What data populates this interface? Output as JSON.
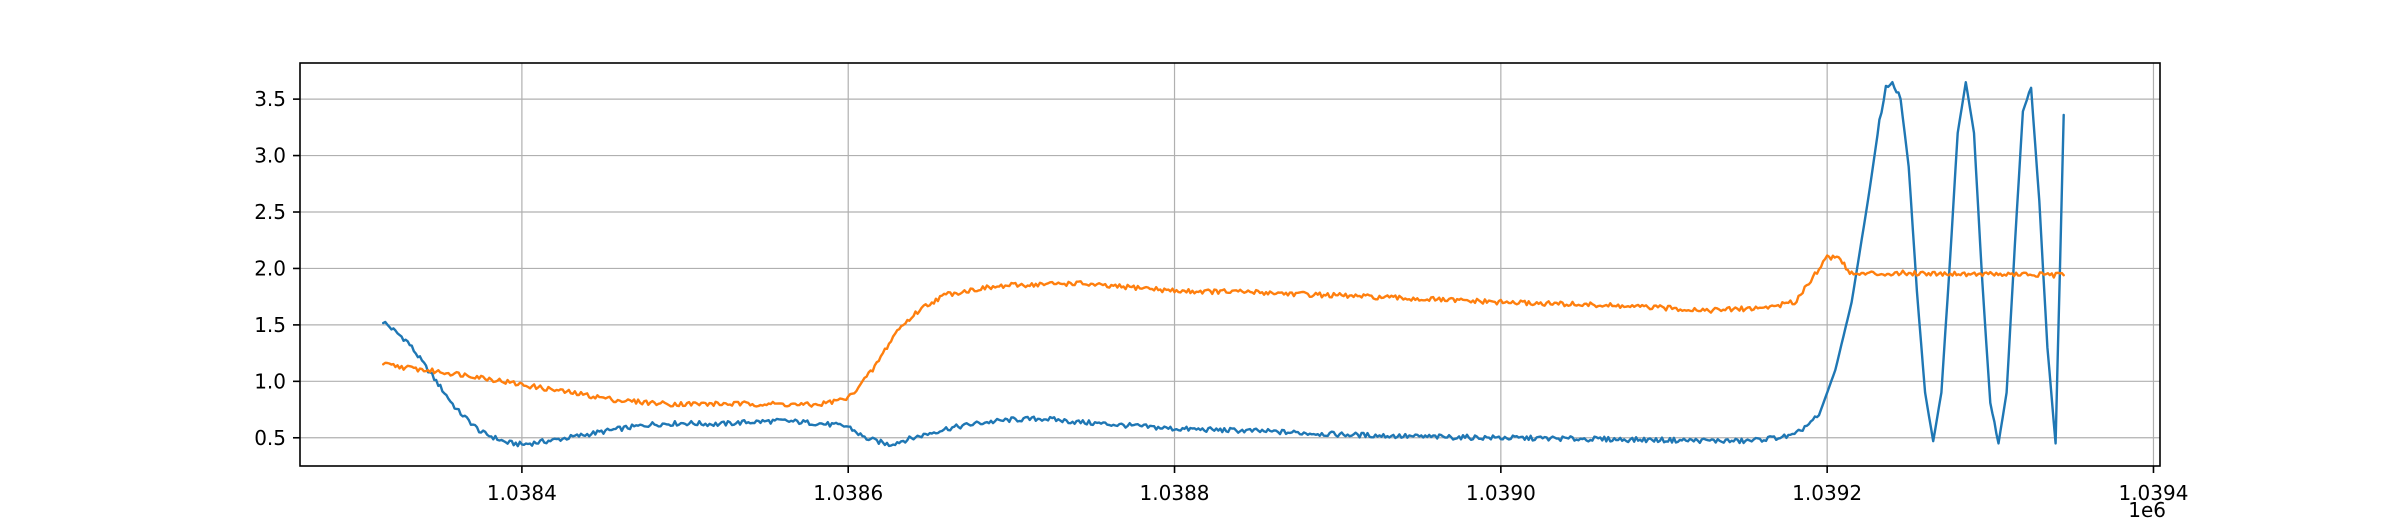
{
  "chart_data": {
    "type": "line",
    "title": "",
    "xlabel": "",
    "ylabel": "",
    "x_offset_label": "1e6",
    "xlim": [
      1038264,
      1039404
    ],
    "ylim": [
      0.25,
      3.82
    ],
    "grid": true,
    "x_ticks": [
      {
        "value": 1038400,
        "label": "1.0384"
      },
      {
        "value": 1038600,
        "label": "1.0386"
      },
      {
        "value": 1038800,
        "label": "1.0388"
      },
      {
        "value": 1039000,
        "label": "1.0390"
      },
      {
        "value": 1039200,
        "label": "1.0392"
      },
      {
        "value": 1039400,
        "label": "1.0394"
      }
    ],
    "y_ticks": [
      {
        "value": 0.5,
        "label": "0.5"
      },
      {
        "value": 1.0,
        "label": "1.0"
      },
      {
        "value": 1.5,
        "label": "1.5"
      },
      {
        "value": 2.0,
        "label": "2.0"
      },
      {
        "value": 2.5,
        "label": "2.5"
      },
      {
        "value": 3.0,
        "label": "3.0"
      },
      {
        "value": 3.5,
        "label": "3.5"
      }
    ],
    "series": [
      {
        "color": "#1f77b4",
        "x": [
          1038315,
          1038330,
          1038345,
          1038360,
          1038375,
          1038390,
          1038400,
          1038420,
          1038440,
          1038460,
          1038480,
          1038500,
          1038520,
          1038540,
          1038560,
          1038580,
          1038600,
          1038610,
          1038625,
          1038640,
          1038660,
          1038680,
          1038700,
          1038720,
          1038740,
          1038760,
          1038780,
          1038800,
          1038850,
          1038900,
          1038950,
          1039000,
          1039050,
          1039100,
          1039150,
          1039180,
          1039195,
          1039205,
          1039215,
          1039225,
          1039232,
          1039236,
          1039240,
          1039245,
          1039250,
          1039255,
          1039260,
          1039265,
          1039270,
          1039275,
          1039280,
          1039285,
          1039290,
          1039295,
          1039300,
          1039305,
          1039310,
          1039315,
          1039320,
          1039325,
          1039330,
          1039335,
          1039340,
          1039345
        ],
        "y": [
          1.53,
          1.35,
          1.05,
          0.75,
          0.55,
          0.46,
          0.44,
          0.48,
          0.53,
          0.58,
          0.62,
          0.63,
          0.62,
          0.64,
          0.65,
          0.63,
          0.6,
          0.5,
          0.44,
          0.5,
          0.58,
          0.63,
          0.66,
          0.67,
          0.64,
          0.62,
          0.6,
          0.58,
          0.56,
          0.53,
          0.51,
          0.5,
          0.49,
          0.48,
          0.47,
          0.52,
          0.7,
          1.1,
          1.7,
          2.6,
          3.3,
          3.6,
          3.65,
          3.5,
          2.9,
          1.8,
          0.9,
          0.47,
          0.9,
          2.0,
          3.2,
          3.65,
          3.2,
          1.9,
          0.8,
          0.45,
          0.9,
          2.2,
          3.4,
          3.6,
          2.6,
          1.3,
          0.45,
          3.36
        ]
      },
      {
        "color": "#ff7f0e",
        "x": [
          1038315,
          1038340,
          1038370,
          1038400,
          1038430,
          1038460,
          1038490,
          1038520,
          1038550,
          1038580,
          1038600,
          1038615,
          1038630,
          1038645,
          1038660,
          1038680,
          1038700,
          1038720,
          1038740,
          1038760,
          1038780,
          1038800,
          1038850,
          1038900,
          1038950,
          1039000,
          1039050,
          1039100,
          1039130,
          1039160,
          1039180,
          1039190,
          1039200,
          1039207,
          1039215,
          1039250,
          1039300,
          1039345
        ],
        "y": [
          1.15,
          1.1,
          1.05,
          0.97,
          0.9,
          0.83,
          0.8,
          0.8,
          0.8,
          0.79,
          0.85,
          1.1,
          1.45,
          1.65,
          1.77,
          1.82,
          1.85,
          1.86,
          1.87,
          1.84,
          1.83,
          1.8,
          1.79,
          1.76,
          1.73,
          1.7,
          1.68,
          1.65,
          1.63,
          1.65,
          1.7,
          1.9,
          2.1,
          2.1,
          1.95,
          1.96,
          1.95,
          1.94
        ]
      }
    ]
  }
}
